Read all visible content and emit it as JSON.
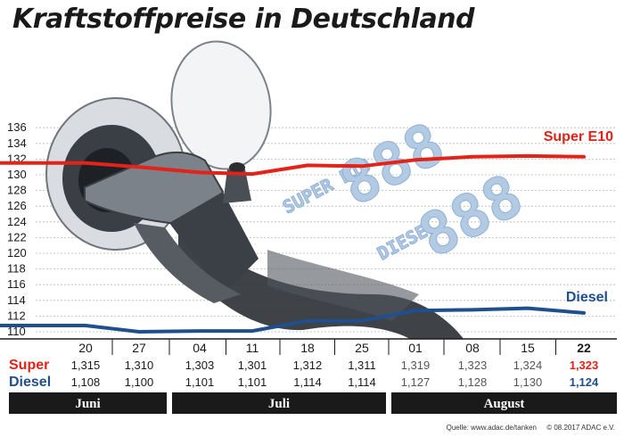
{
  "title": "Kraftstoffpreise in Deutschland",
  "source": "Quelle: www.adac.de/tanken",
  "copyright": "© 08.2017  ADAC e.V.",
  "colors": {
    "super": "#e32219",
    "diesel": "#1f4f8e",
    "grid": "#b9b9b9",
    "band": "#1a1a1a"
  },
  "chart_data": {
    "type": "line",
    "title": "Kraftstoffpreise in Deutschland",
    "ylim": [
      110,
      136
    ],
    "yticks": [
      110,
      112,
      114,
      116,
      118,
      120,
      122,
      124,
      126,
      128,
      130,
      132,
      134,
      136
    ],
    "grid": true,
    "categories": [
      "20",
      "27",
      "04",
      "11",
      "18",
      "25",
      "01",
      "08",
      "15",
      "22"
    ],
    "months": [
      {
        "label": "Juni",
        "span": [
          0,
          1
        ]
      },
      {
        "label": "Juli",
        "span": [
          2,
          5
        ]
      },
      {
        "label": "August",
        "span": [
          6,
          9
        ]
      }
    ],
    "series": [
      {
        "name": "Super E10",
        "row_label": "Super",
        "values": [
          131.5,
          131.0,
          130.3,
          130.1,
          131.2,
          131.1,
          131.9,
          132.3,
          132.4,
          132.3
        ],
        "labels": [
          "1,315",
          "1,310",
          "1,303",
          "1,301",
          "1,312",
          "1,311",
          "1,319",
          "1,323",
          "1,324",
          "1,323"
        ]
      },
      {
        "name": "Diesel",
        "row_label": "Diesel",
        "values": [
          110.8,
          110.0,
          110.1,
          110.1,
          111.4,
          111.4,
          112.7,
          112.8,
          113.0,
          112.4
        ],
        "labels": [
          "1,108",
          "1,100",
          "1,101",
          "1,101",
          "1,114",
          "1,114",
          "1,127",
          "1,128",
          "1,130",
          "1,124"
        ]
      }
    ]
  },
  "illustration": {
    "digits_super": "888",
    "digits_diesel": "888",
    "label_super": "SUPER E10",
    "label_diesel": "DIESEL"
  }
}
